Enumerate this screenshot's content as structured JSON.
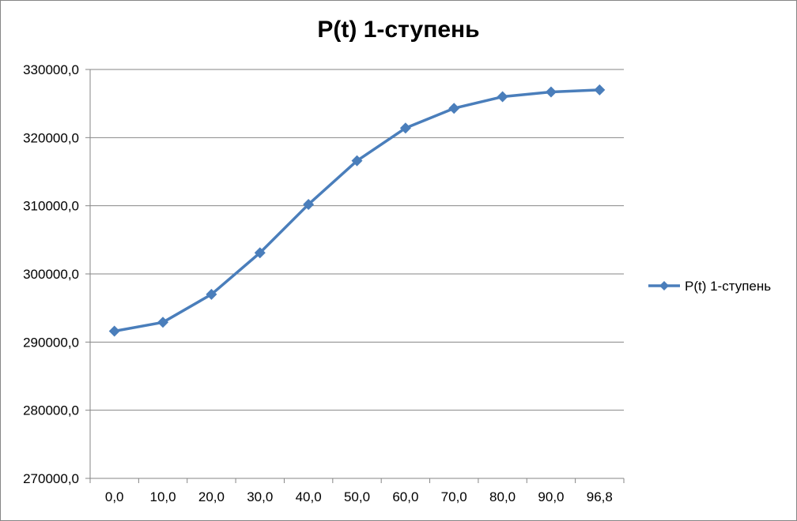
{
  "chart_data": {
    "type": "line",
    "title": "P(t) 1-ступень",
    "xlabel": "",
    "ylabel": "",
    "categories": [
      "0,0",
      "10,0",
      "20,0",
      "30,0",
      "40,0",
      "50,0",
      "60,0",
      "70,0",
      "80,0",
      "90,0",
      "96,8"
    ],
    "series": [
      {
        "name": "P(t) 1-ступень",
        "values": [
          291600,
          292900,
          297000,
          303100,
          310200,
          316600,
          321400,
          324300,
          326000,
          326700,
          327000
        ],
        "color": "#4A7EBB"
      }
    ],
    "ylim": [
      270000,
      330000
    ],
    "yticks": [
      270000,
      280000,
      290000,
      300000,
      310000,
      320000,
      330000
    ],
    "ytick_labels": [
      "270000,0",
      "280000,0",
      "290000,0",
      "300000,0",
      "310000,0",
      "320000,0",
      "330000,0"
    ],
    "grid": "horizontal",
    "legend": "right",
    "gridline_color": "#868686",
    "axis_color": "#868686",
    "marker": "diamond"
  }
}
